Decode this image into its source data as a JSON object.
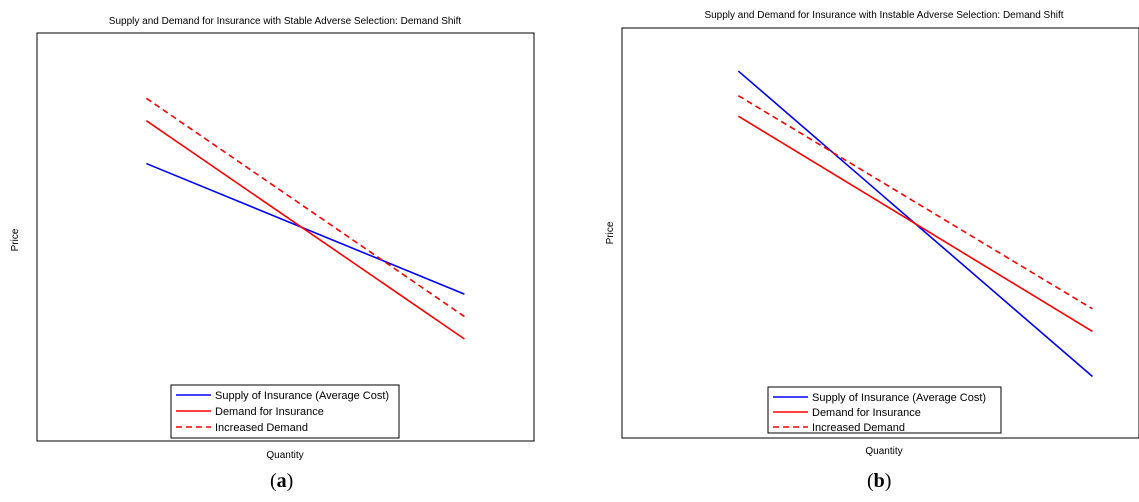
{
  "chart_data": [
    {
      "type": "line",
      "title": "Supply and Demand for Insurance with Stable Adverse Selection: Demand Shift",
      "xlabel": "Quantity",
      "ylabel": "Price",
      "caption": "(a)",
      "caption_letter": "a",
      "grid": false,
      "legend_position": "bottom-center",
      "xlim": [
        0,
        10
      ],
      "ylim": [
        0,
        10
      ],
      "series": [
        {
          "name": "Supply of Insurance (Average Cost)",
          "color": "#0000ff",
          "dash": "solid",
          "x": [
            2.2,
            8.6
          ],
          "y": [
            6.8,
            3.6
          ]
        },
        {
          "name": "Demand for Insurance",
          "color": "#ff0000",
          "dash": "solid",
          "x": [
            2.2,
            8.6
          ],
          "y": [
            7.85,
            2.5
          ]
        },
        {
          "name": "Increased Demand",
          "color": "#ff0000",
          "dash": "dashed",
          "x": [
            2.2,
            8.6
          ],
          "y": [
            8.4,
            3.05
          ]
        }
      ]
    },
    {
      "type": "line",
      "title": "Supply and Demand for Insurance with Instable Adverse Selection: Demand Shift",
      "xlabel": "Quantity",
      "ylabel": "Price",
      "caption": "(b)",
      "caption_letter": "b",
      "grid": false,
      "legend_position": "bottom-center",
      "xlim": [
        0,
        10
      ],
      "ylim": [
        0,
        10
      ],
      "series": [
        {
          "name": "Supply of Insurance (Average Cost)",
          "color": "#0000ff",
          "dash": "solid",
          "x": [
            2.25,
            9.1
          ],
          "y": [
            8.95,
            1.5
          ]
        },
        {
          "name": "Demand for Insurance",
          "color": "#ff0000",
          "dash": "solid",
          "x": [
            2.25,
            9.1
          ],
          "y": [
            7.85,
            2.6
          ]
        },
        {
          "name": "Increased Demand",
          "color": "#ff0000",
          "dash": "dashed",
          "x": [
            2.25,
            9.1
          ],
          "y": [
            8.35,
            3.15
          ]
        }
      ]
    }
  ]
}
